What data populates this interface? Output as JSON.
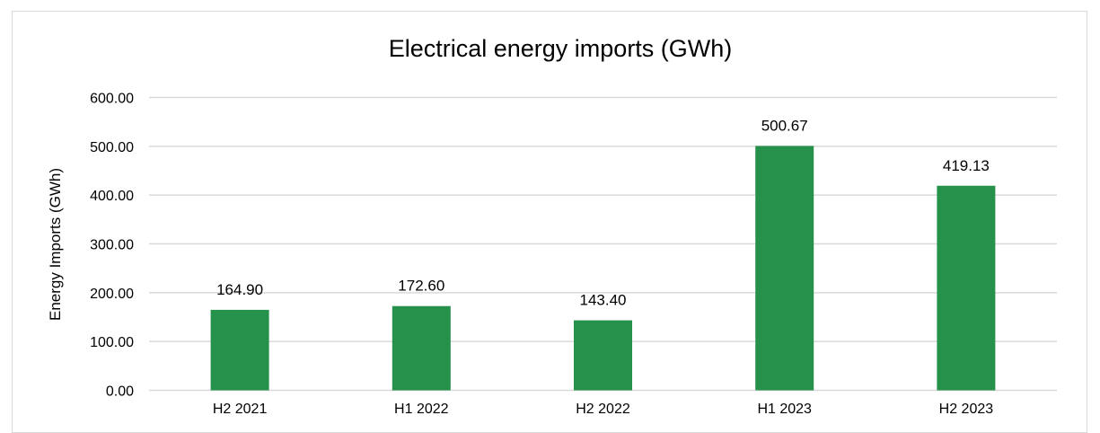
{
  "chart_data": {
    "type": "bar",
    "title": "Electrical energy imports (GWh)",
    "xlabel": "",
    "ylabel": "Energy Imports (GWh)",
    "categories": [
      "H2 2021",
      "H1 2022",
      "H2 2022",
      "H1 2023",
      "H2 2023"
    ],
    "series": [
      {
        "values": [
          164.9,
          172.6,
          143.4,
          500.67,
          419.13
        ],
        "data_labels": [
          "164.90",
          "172.60",
          "143.40",
          "500.67",
          "419.13"
        ],
        "color": "#25914a"
      }
    ],
    "ylim": [
      0,
      600
    ],
    "yticks": [
      0,
      100,
      200,
      300,
      400,
      500,
      600
    ],
    "ytick_labels": [
      "0.00",
      "100.00",
      "200.00",
      "300.00",
      "400.00",
      "500.00",
      "600.00"
    ],
    "grid": true,
    "legend": "none",
    "gridline_color": "#d9d9d9"
  }
}
